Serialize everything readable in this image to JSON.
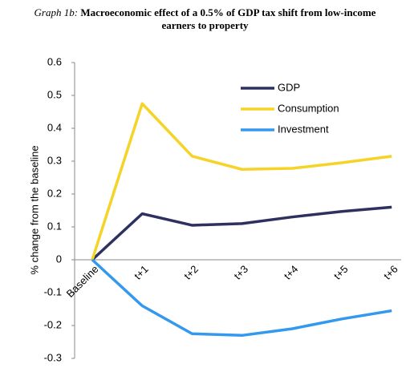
{
  "chart_data": {
    "type": "line",
    "title_label": "Graph 1b:",
    "title": "Macroeconomic effect of a 0.5% of GDP tax shift from low-income earners to property",
    "ylabel": "% change from the baseline",
    "categories": [
      "Baseline",
      "t+1",
      "t+2",
      "t+3",
      "t+4",
      "t+5",
      "t+6"
    ],
    "series": [
      {
        "name": "GDP",
        "color": "#2e3060",
        "values": [
          0,
          0.14,
          0.105,
          0.11,
          0.13,
          0.147,
          0.16
        ]
      },
      {
        "name": "Consumption",
        "color": "#f5d327",
        "values": [
          0,
          0.475,
          0.315,
          0.275,
          0.278,
          0.295,
          0.315
        ]
      },
      {
        "name": "Investment",
        "color": "#3399ee",
        "values": [
          0,
          -0.14,
          -0.225,
          -0.23,
          -0.21,
          -0.18,
          -0.155
        ]
      }
    ],
    "ylim": [
      -0.3,
      0.6
    ],
    "yticks": [
      -0.3,
      -0.2,
      -0.1,
      0,
      0.1,
      0.2,
      0.3,
      0.4,
      0.5,
      0.6
    ],
    "grid": false,
    "legend": "top-right"
  }
}
